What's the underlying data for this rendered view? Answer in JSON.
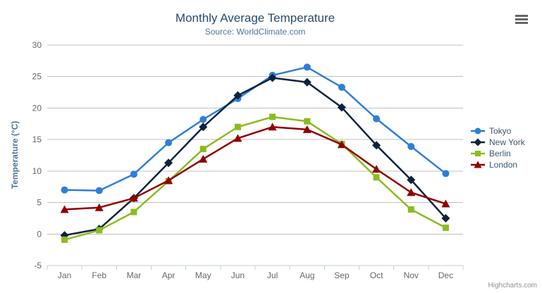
{
  "header": {
    "title": "Monthly Average Temperature",
    "subtitle": "Source: WorldClimate.com"
  },
  "credits": "Highcharts.com",
  "colors": {
    "title_text": "#274b6d",
    "subtitle_text": "#4d759e",
    "axis_label_text": "#666666",
    "legend_text": "#3e576f",
    "gridline": "#c0c0c0",
    "axis_line": "#c0d0e0"
  },
  "chart_data": {
    "type": "line",
    "title": "Monthly Average Temperature",
    "subtitle": "Source: WorldClimate.com",
    "xlabel": "",
    "ylabel": "Temperature (°C)",
    "ylim": [
      -5,
      30
    ],
    "yticks": [
      -5,
      0,
      5,
      10,
      15,
      20,
      25,
      30
    ],
    "grid": true,
    "legend_position": "right",
    "categories": [
      "Jan",
      "Feb",
      "Mar",
      "Apr",
      "May",
      "Jun",
      "Jul",
      "Aug",
      "Sep",
      "Oct",
      "Nov",
      "Dec"
    ],
    "series": [
      {
        "name": "Tokyo",
        "color": "#2f7ed8",
        "marker": "circle",
        "values": [
          7.0,
          6.9,
          9.5,
          14.5,
          18.2,
          21.5,
          25.2,
          26.5,
          23.3,
          18.3,
          13.9,
          9.6
        ]
      },
      {
        "name": "New York",
        "color": "#0d233a",
        "marker": "diamond",
        "values": [
          -0.2,
          0.8,
          5.7,
          11.3,
          17.0,
          22.0,
          24.8,
          24.1,
          20.1,
          14.1,
          8.6,
          2.5
        ]
      },
      {
        "name": "Berlin",
        "color": "#8bbc21",
        "marker": "square",
        "values": [
          -0.9,
          0.6,
          3.5,
          8.4,
          13.5,
          17.0,
          18.6,
          17.9,
          14.3,
          9.0,
          3.9,
          1.0
        ]
      },
      {
        "name": "London",
        "color": "#910000",
        "marker": "triangle",
        "values": [
          3.9,
          4.2,
          5.7,
          8.5,
          11.9,
          15.2,
          17.0,
          16.6,
          14.2,
          10.3,
          6.6,
          4.8
        ]
      }
    ]
  }
}
